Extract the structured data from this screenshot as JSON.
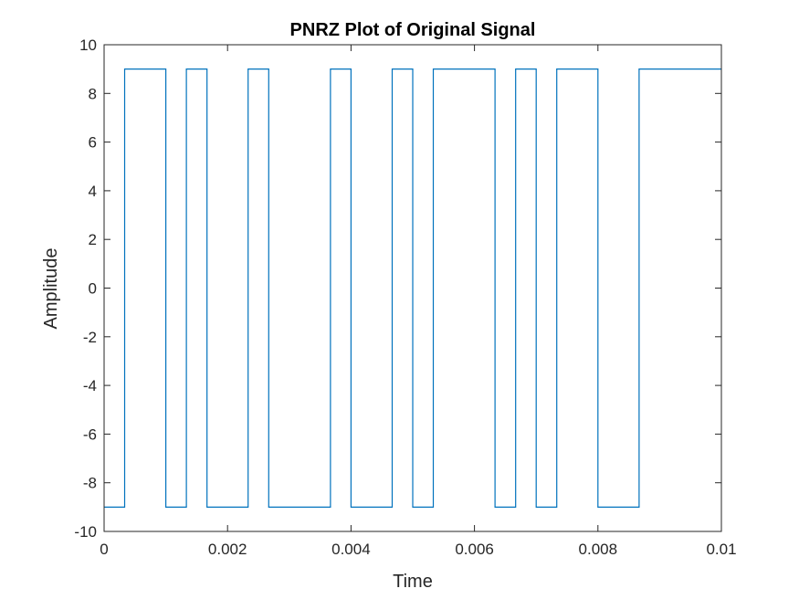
{
  "chart_data": {
    "type": "line",
    "title": "PNRZ Plot of Original Signal",
    "xlabel": "Time",
    "ylabel": "Amplitude",
    "xlim": [
      0,
      0.01
    ],
    "ylim": [
      -10,
      10
    ],
    "xticks": [
      0,
      0.002,
      0.004,
      0.006,
      0.008,
      0.01
    ],
    "xtick_labels": [
      "0",
      "0.002",
      "0.004",
      "0.006",
      "0.008",
      "0.01"
    ],
    "yticks": [
      -10,
      -8,
      -6,
      -4,
      -2,
      0,
      2,
      4,
      6,
      8,
      10
    ],
    "ytick_labels": [
      "-10",
      "-8",
      "-6",
      "-4",
      "-2",
      "0",
      "2",
      "4",
      "6",
      "8",
      "10"
    ],
    "grid": false,
    "line_color": "#0072BD",
    "series": [
      {
        "step": "post",
        "x": [
          0,
          0.000333,
          0.001,
          0.001333,
          0.001667,
          0.002333,
          0.002667,
          0.003667,
          0.004,
          0.004667,
          0.005,
          0.005333,
          0.006333,
          0.006667,
          0.007,
          0.007333,
          0.008,
          0.008667,
          0.01
        ],
        "y": [
          -9,
          9,
          -9,
          9,
          -9,
          9,
          -9,
          9,
          -9,
          9,
          -9,
          9,
          -9,
          9,
          -9,
          9,
          -9,
          9,
          9
        ]
      }
    ]
  }
}
